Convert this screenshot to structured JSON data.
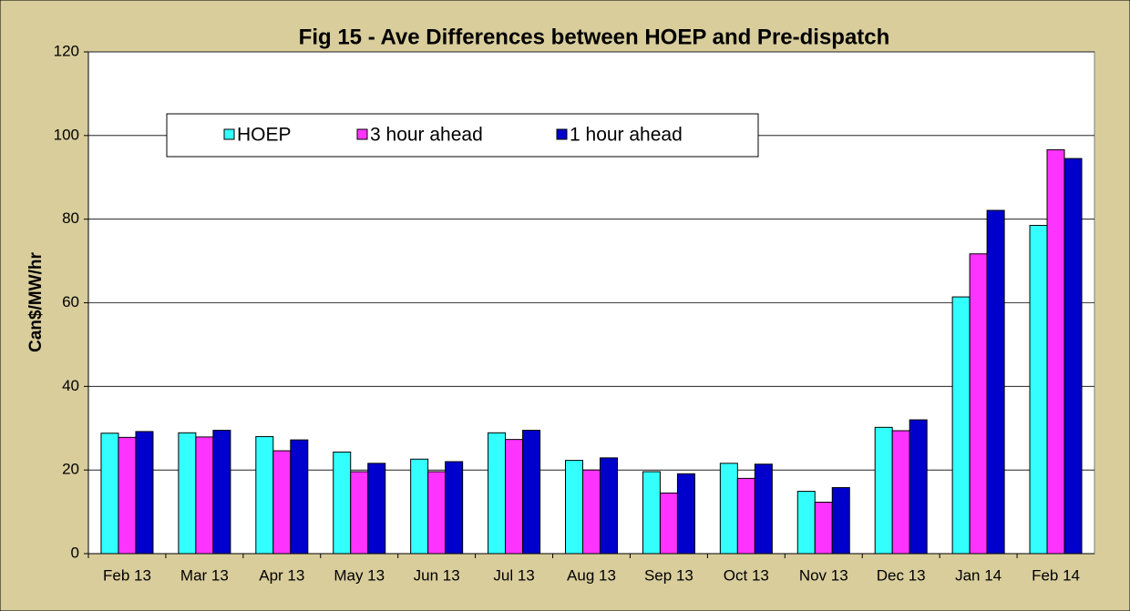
{
  "chart_data": {
    "type": "bar",
    "title": "Fig 15 - Ave Differences between HOEP and Pre-dispatch",
    "y_label": "Can$/MW/hr",
    "categories": [
      "Feb 13",
      "Mar 13",
      "Apr 13",
      "May 13",
      "Jun 13",
      "Jul 13",
      "Aug 13",
      "Sep 13",
      "Oct 13",
      "Nov 13",
      "Dec 13",
      "Jan 14",
      "Feb 14"
    ],
    "series": [
      {
        "name": "HOEP",
        "color": "#33ffff",
        "values": [
          28.8,
          28.9,
          28.0,
          24.3,
          22.6,
          28.9,
          22.3,
          19.6,
          21.6,
          14.9,
          30.2,
          61.4,
          78.5
        ]
      },
      {
        "name": "3 hour ahead",
        "color": "#ff33ff",
        "values": [
          27.8,
          27.9,
          24.6,
          19.6,
          19.6,
          27.3,
          20.0,
          14.5,
          18.0,
          12.3,
          29.4,
          71.7,
          96.6
        ]
      },
      {
        "name": "1 hour ahead",
        "color": "#0000cc",
        "values": [
          29.2,
          29.5,
          27.2,
          21.6,
          22.0,
          29.5,
          22.9,
          19.1,
          21.4,
          15.8,
          32.0,
          82.1,
          94.5
        ]
      }
    ],
    "ylim": [
      0,
      120
    ],
    "yticks": [
      0,
      20,
      40,
      60,
      80,
      100,
      120
    ],
    "grid": true,
    "legend": "top-left"
  }
}
